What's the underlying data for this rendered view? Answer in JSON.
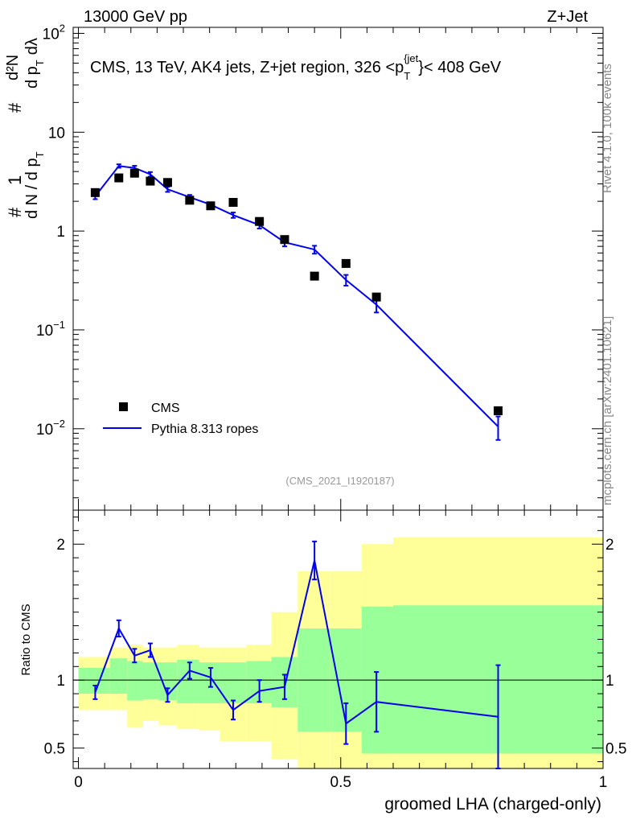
{
  "header": {
    "left": "13000 GeV pp",
    "right": "Z+Jet"
  },
  "side_labels": {
    "rivet": "Rivet 4.1.0,  100k events",
    "source": "mcplots.cern.ch [arXiv:2401.10621]"
  },
  "reference": "(CMS_2021_I1920187)",
  "colors": {
    "mc": "#0000ee",
    "data": "#000000",
    "band_inner": "#99ff99",
    "band_outer": "#ffff99"
  },
  "chart_data": [
    {
      "type": "line",
      "title": "CMS, 13 TeV, AK4 jets, Z+jet region, 326 <p_T^{jet}< 408 GeV",
      "title_parts": {
        "main": "CMS, 13 TeV, AK4 jets, Z+jet region, 326 <p",
        "sub": "T",
        "sup": "{jet",
        "tail": "}< 408 GeV"
      },
      "ylabel": "1 / (dN / dp_T) · d²N / (dp_T dλ)",
      "ylabel_parts": {
        "top": "d²N",
        "mid": "d p",
        "sub": "T",
        "tail": "dλ",
        "one": "1",
        "den": "d N / d p",
        "hash": "#"
      },
      "yscale": "log",
      "ylim": [
        0.0015,
        115
      ],
      "xlim": [
        -0.01,
        1.0
      ],
      "yticks": [
        {
          "value": 0.01,
          "label": "10",
          "exp": "−2"
        },
        {
          "value": 0.1,
          "label": "10",
          "exp": "−1"
        },
        {
          "value": 1,
          "label": "1",
          "exp": ""
        },
        {
          "value": 10,
          "label": "10",
          "exp": ""
        },
        {
          "value": 100,
          "label": "10",
          "exp": "2"
        }
      ],
      "legend": {
        "position": "bottom-left",
        "entries": [
          "CMS",
          "Pythia 8.313 ropes"
        ]
      },
      "series": [
        {
          "name": "CMS",
          "style": "markers",
          "x": [
            0.032,
            0.077,
            0.107,
            0.137,
            0.17,
            0.212,
            0.252,
            0.295,
            0.345,
            0.393,
            0.45,
            0.51,
            0.568,
            0.8
          ],
          "y": [
            2.45,
            3.45,
            3.85,
            3.2,
            3.1,
            2.05,
            1.8,
            1.95,
            1.25,
            0.82,
            0.35,
            0.47,
            0.215,
            0.0152
          ]
        },
        {
          "name": "Pythia 8.313 ropes",
          "style": "line",
          "x": [
            0.032,
            0.077,
            0.107,
            0.137,
            0.17,
            0.212,
            0.252,
            0.295,
            0.345,
            0.393,
            0.45,
            0.51,
            0.568,
            0.8
          ],
          "y": [
            2.25,
            4.55,
            4.35,
            3.75,
            2.65,
            2.2,
            1.85,
            1.45,
            1.15,
            0.77,
            0.65,
            0.32,
            0.18,
            0.0105
          ],
          "yerr": [
            0.15,
            0.18,
            0.22,
            0.2,
            0.16,
            0.12,
            0.1,
            0.09,
            0.09,
            0.07,
            0.06,
            0.04,
            0.03,
            0.0028
          ]
        }
      ]
    },
    {
      "type": "line",
      "ylabel": "Ratio to CMS",
      "xlabel": "groomed LHA (charged-only)",
      "ylim": [
        0.35,
        2.25
      ],
      "xlim": [
        -0.01,
        1.0
      ],
      "yticks": [
        0.5,
        1,
        2
      ],
      "xticks": [
        {
          "value": 0,
          "label": "0"
        },
        {
          "value": 0.5,
          "label": "0.5"
        },
        {
          "value": 1,
          "label": "1"
        }
      ],
      "reference_line": 1,
      "uncertainty_bands": {
        "edges": [
          0,
          0.06,
          0.093,
          0.123,
          0.153,
          0.188,
          0.23,
          0.27,
          0.32,
          0.368,
          0.418,
          0.48,
          0.54,
          0.6,
          1.0
        ],
        "inner_lo": [
          0.9,
          0.9,
          0.85,
          0.86,
          0.85,
          0.83,
          0.83,
          0.83,
          0.83,
          0.8,
          0.62,
          0.62,
          0.46,
          0.46
        ],
        "inner_hi": [
          1.09,
          1.16,
          1.14,
          1.13,
          1.13,
          1.15,
          1.13,
          1.13,
          1.14,
          1.17,
          1.38,
          1.38,
          1.54,
          1.55
        ],
        "outer_lo": [
          0.78,
          0.78,
          0.65,
          0.7,
          0.67,
          0.64,
          0.63,
          0.55,
          0.55,
          0.42,
          0.32,
          0.32,
          0.32,
          0.32
        ],
        "outer_hi": [
          1.17,
          1.24,
          1.26,
          1.24,
          1.24,
          1.26,
          1.24,
          1.24,
          1.26,
          1.5,
          1.8,
          1.8,
          2.0,
          2.05
        ]
      },
      "series": [
        {
          "name": "Pythia 8.313 ropes / CMS",
          "style": "line",
          "x": [
            0.032,
            0.077,
            0.107,
            0.137,
            0.17,
            0.212,
            0.252,
            0.295,
            0.345,
            0.393,
            0.45,
            0.51,
            0.568,
            0.8
          ],
          "y": [
            0.91,
            1.38,
            1.18,
            1.22,
            0.89,
            1.07,
            1.02,
            0.78,
            0.92,
            0.95,
            1.88,
            0.68,
            0.84,
            0.73
          ],
          "yerr": [
            0.05,
            0.06,
            0.05,
            0.05,
            0.05,
            0.06,
            0.07,
            0.07,
            0.08,
            0.09,
            0.14,
            0.15,
            0.22,
            0.38
          ]
        }
      ]
    }
  ]
}
